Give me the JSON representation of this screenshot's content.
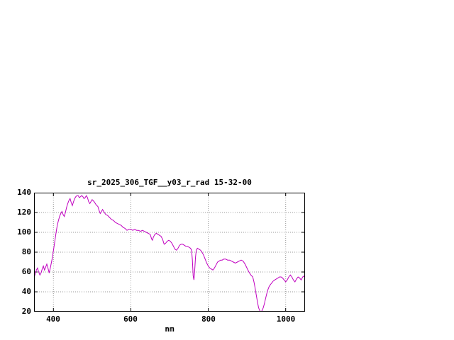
{
  "window": {
    "background": "#ffffff"
  },
  "chart_data": {
    "type": "line",
    "title": "sr_2025_306_TGF__y03_r_rad 15-32-00",
    "xlabel": "nm",
    "ylabel": "",
    "xlim": [
      350,
      1050
    ],
    "ylim": [
      20,
      140
    ],
    "xticks": [
      400,
      600,
      800,
      1000
    ],
    "yticks": [
      20,
      40,
      60,
      80,
      100,
      120,
      140
    ],
    "grid": true,
    "legend_position": "none",
    "line_color": "#c000c0",
    "series": [
      {
        "name": "sr_2025_306_TGF__y03_r_rad 15-32-00",
        "points": [
          [
            350,
            54
          ],
          [
            353,
            58
          ],
          [
            356,
            62
          ],
          [
            359,
            64
          ],
          [
            362,
            60
          ],
          [
            365,
            57
          ],
          [
            368,
            59
          ],
          [
            371,
            63
          ],
          [
            374,
            66
          ],
          [
            377,
            62
          ],
          [
            380,
            65
          ],
          [
            383,
            68
          ],
          [
            386,
            64
          ],
          [
            389,
            59
          ],
          [
            392,
            64
          ],
          [
            395,
            70
          ],
          [
            398,
            76
          ],
          [
            401,
            84
          ],
          [
            404,
            92
          ],
          [
            407,
            100
          ],
          [
            410,
            107
          ],
          [
            413,
            112
          ],
          [
            416,
            116
          ],
          [
            419,
            119
          ],
          [
            422,
            121
          ],
          [
            425,
            118
          ],
          [
            428,
            116
          ],
          [
            431,
            120
          ],
          [
            434,
            125
          ],
          [
            437,
            129
          ],
          [
            440,
            132
          ],
          [
            443,
            134
          ],
          [
            446,
            130
          ],
          [
            449,
            127
          ],
          [
            452,
            131
          ],
          [
            455,
            134
          ],
          [
            458,
            136
          ],
          [
            461,
            137
          ],
          [
            464,
            137
          ],
          [
            467,
            135
          ],
          [
            470,
            136
          ],
          [
            473,
            137
          ],
          [
            476,
            136
          ],
          [
            479,
            134
          ],
          [
            482,
            135
          ],
          [
            485,
            137
          ],
          [
            488,
            135
          ],
          [
            491,
            131
          ],
          [
            494,
            129
          ],
          [
            497,
            131
          ],
          [
            500,
            133
          ],
          [
            505,
            131
          ],
          [
            510,
            128
          ],
          [
            515,
            126
          ],
          [
            518,
            122
          ],
          [
            521,
            119
          ],
          [
            524,
            121
          ],
          [
            527,
            123
          ],
          [
            530,
            121
          ],
          [
            535,
            118
          ],
          [
            540,
            117
          ],
          [
            545,
            115
          ],
          [
            550,
            113
          ],
          [
            555,
            112
          ],
          [
            560,
            110
          ],
          [
            565,
            109
          ],
          [
            570,
            108
          ],
          [
            575,
            107
          ],
          [
            580,
            105
          ],
          [
            585,
            104
          ],
          [
            590,
            102
          ],
          [
            595,
            103
          ],
          [
            600,
            103
          ],
          [
            605,
            102
          ],
          [
            610,
            103
          ],
          [
            615,
            102
          ],
          [
            620,
            102
          ],
          [
            625,
            101
          ],
          [
            630,
            102
          ],
          [
            635,
            101
          ],
          [
            640,
            100
          ],
          [
            645,
            99
          ],
          [
            650,
            98
          ],
          [
            654,
            93
          ],
          [
            656,
            92
          ],
          [
            658,
            95
          ],
          [
            662,
            98
          ],
          [
            666,
            99
          ],
          [
            670,
            98
          ],
          [
            674,
            97
          ],
          [
            678,
            96
          ],
          [
            682,
            93
          ],
          [
            686,
            88
          ],
          [
            690,
            89
          ],
          [
            694,
            91
          ],
          [
            698,
            92
          ],
          [
            702,
            91
          ],
          [
            706,
            89
          ],
          [
            710,
            86
          ],
          [
            714,
            83
          ],
          [
            718,
            82
          ],
          [
            722,
            84
          ],
          [
            726,
            87
          ],
          [
            730,
            88
          ],
          [
            734,
            88
          ],
          [
            738,
            87
          ],
          [
            742,
            86
          ],
          [
            746,
            86
          ],
          [
            750,
            85
          ],
          [
            754,
            84
          ],
          [
            757,
            82
          ],
          [
            759,
            72
          ],
          [
            761,
            56
          ],
          [
            763,
            52
          ],
          [
            765,
            62
          ],
          [
            767,
            75
          ],
          [
            769,
            82
          ],
          [
            772,
            84
          ],
          [
            776,
            83
          ],
          [
            780,
            82
          ],
          [
            784,
            80
          ],
          [
            788,
            77
          ],
          [
            792,
            73
          ],
          [
            796,
            69
          ],
          [
            800,
            66
          ],
          [
            804,
            64
          ],
          [
            808,
            63
          ],
          [
            812,
            62
          ],
          [
            816,
            64
          ],
          [
            820,
            67
          ],
          [
            824,
            70
          ],
          [
            828,
            71
          ],
          [
            832,
            72
          ],
          [
            836,
            72
          ],
          [
            840,
            73
          ],
          [
            845,
            73
          ],
          [
            850,
            72
          ],
          [
            855,
            72
          ],
          [
            860,
            71
          ],
          [
            865,
            70
          ],
          [
            870,
            69
          ],
          [
            875,
            70
          ],
          [
            880,
            71
          ],
          [
            885,
            72
          ],
          [
            890,
            71
          ],
          [
            895,
            68
          ],
          [
            900,
            64
          ],
          [
            905,
            60
          ],
          [
            910,
            57
          ],
          [
            915,
            55
          ],
          [
            918,
            50
          ],
          [
            921,
            44
          ],
          [
            924,
            37
          ],
          [
            927,
            30
          ],
          [
            930,
            24
          ],
          [
            933,
            21
          ],
          [
            936,
            20
          ],
          [
            939,
            21
          ],
          [
            942,
            24
          ],
          [
            945,
            28
          ],
          [
            948,
            33
          ],
          [
            951,
            38
          ],
          [
            954,
            42
          ],
          [
            957,
            45
          ],
          [
            960,
            47
          ],
          [
            964,
            49
          ],
          [
            968,
            51
          ],
          [
            972,
            52
          ],
          [
            976,
            53
          ],
          [
            980,
            54
          ],
          [
            984,
            55
          ],
          [
            988,
            55
          ],
          [
            992,
            54
          ],
          [
            996,
            52
          ],
          [
            1000,
            50
          ],
          [
            1004,
            52
          ],
          [
            1008,
            55
          ],
          [
            1012,
            57
          ],
          [
            1016,
            55
          ],
          [
            1020,
            52
          ],
          [
            1024,
            50
          ],
          [
            1028,
            53
          ],
          [
            1032,
            55
          ],
          [
            1036,
            54
          ],
          [
            1040,
            52
          ],
          [
            1044,
            55
          ],
          [
            1048,
            56
          ],
          [
            1050,
            53
          ]
        ]
      }
    ]
  }
}
